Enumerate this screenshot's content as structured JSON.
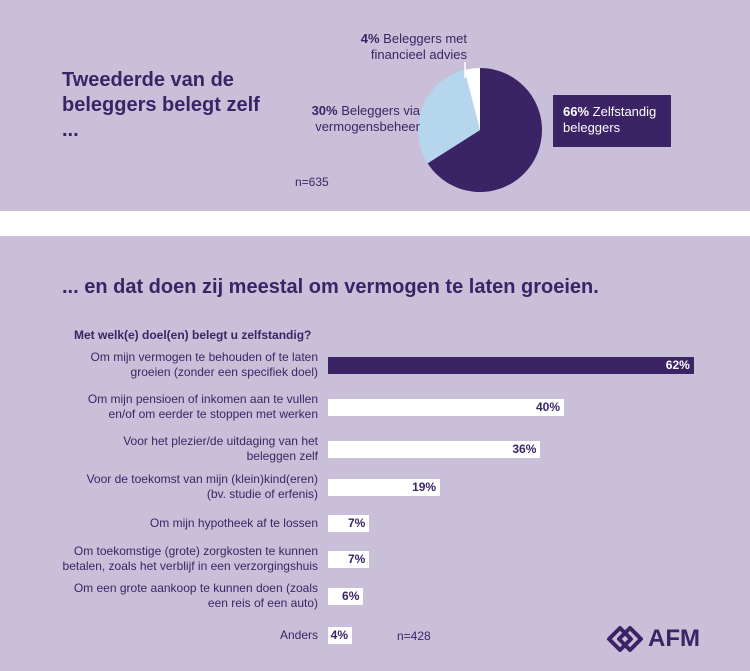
{
  "top": {
    "headline": "Tweederde van de beleggers belegt zelf ...",
    "n_label": "n=635",
    "slices": [
      {
        "pct": "66%",
        "label": "Zelfstandig beleggers",
        "value": 66,
        "color": "#3b2466"
      },
      {
        "pct": "30%",
        "label": "Beleggers via vermogensbeheer",
        "value": 30,
        "color": "#b6d6ee"
      },
      {
        "pct": "4%",
        "label": "Beleggers met financieel advies",
        "value": 4,
        "color": "#ffffff"
      }
    ]
  },
  "bottom": {
    "headline": "... en dat doen zij meestal om vermogen te laten groeien.",
    "question": "Met welk(e) doel(en) belegt u zelfstandig?",
    "n_label": "n=428"
  },
  "logo": {
    "text": "AFM"
  },
  "chart_data": [
    {
      "type": "pie",
      "title": "Tweederde van de beleggers belegt zelf ...",
      "categories": [
        "Zelfstandig beleggers",
        "Beleggers via vermogensbeheer",
        "Beleggers met financieel advies"
      ],
      "values": [
        66,
        30,
        4
      ],
      "colors": [
        "#3b2466",
        "#b6d6ee",
        "#ffffff"
      ],
      "annotation": "n=635"
    },
    {
      "type": "bar",
      "orientation": "horizontal",
      "title": "Met welk(e) doel(en) belegt u zelfstandig?",
      "categories": [
        "Om mijn vermogen te behouden of te laten groeien (zonder een specifiek doel)",
        "Om mijn pensioen of inkomen aan te vullen en/of om eerder te stoppen met werken",
        "Voor het plezier/de uitdaging van het beleggen zelf",
        "Voor de toekomst van mijn (klein)kind(eren) (bv. studie of erfenis)",
        "Om mijn hypotheek af te lossen",
        "Om toekomstige (grote) zorgkosten te kunnen betalen, zoals het verblijf in een verzorgingshuis",
        "Om een grote aankoop te kunnen doen (zoals een reis of een auto)",
        "Anders"
      ],
      "label_lines": [
        [
          "Om mijn vermogen te behouden of te laten",
          "groeien (zonder een specifiek doel)"
        ],
        [
          "Om mijn pensioen of inkomen aan te vullen",
          "en/of om eerder te stoppen met werken"
        ],
        [
          "Voor het plezier/de uitdaging van het",
          "beleggen zelf"
        ],
        [
          "Voor de toekomst van mijn (klein)kind(eren)",
          "(bv. studie of erfenis)"
        ],
        [
          "Om mijn hypotheek af te lossen"
        ],
        [
          "Om toekomstige (grote) zorgkosten te kunnen",
          "betalen, zoals het verblijf in een verzorgingshuis"
        ],
        [
          "Om een grote aankoop te kunnen doen (zoals",
          "een reis of een auto)"
        ],
        [
          "Anders"
        ]
      ],
      "values": [
        62,
        40,
        36,
        19,
        7,
        7,
        6,
        4
      ],
      "value_labels": [
        "62%",
        "40%",
        "36%",
        "19%",
        "7%",
        "7%",
        "6%",
        "4%"
      ],
      "highlight_color": "#3b2466",
      "bar_color": "#ffffff",
      "annotation": "n=428"
    }
  ]
}
